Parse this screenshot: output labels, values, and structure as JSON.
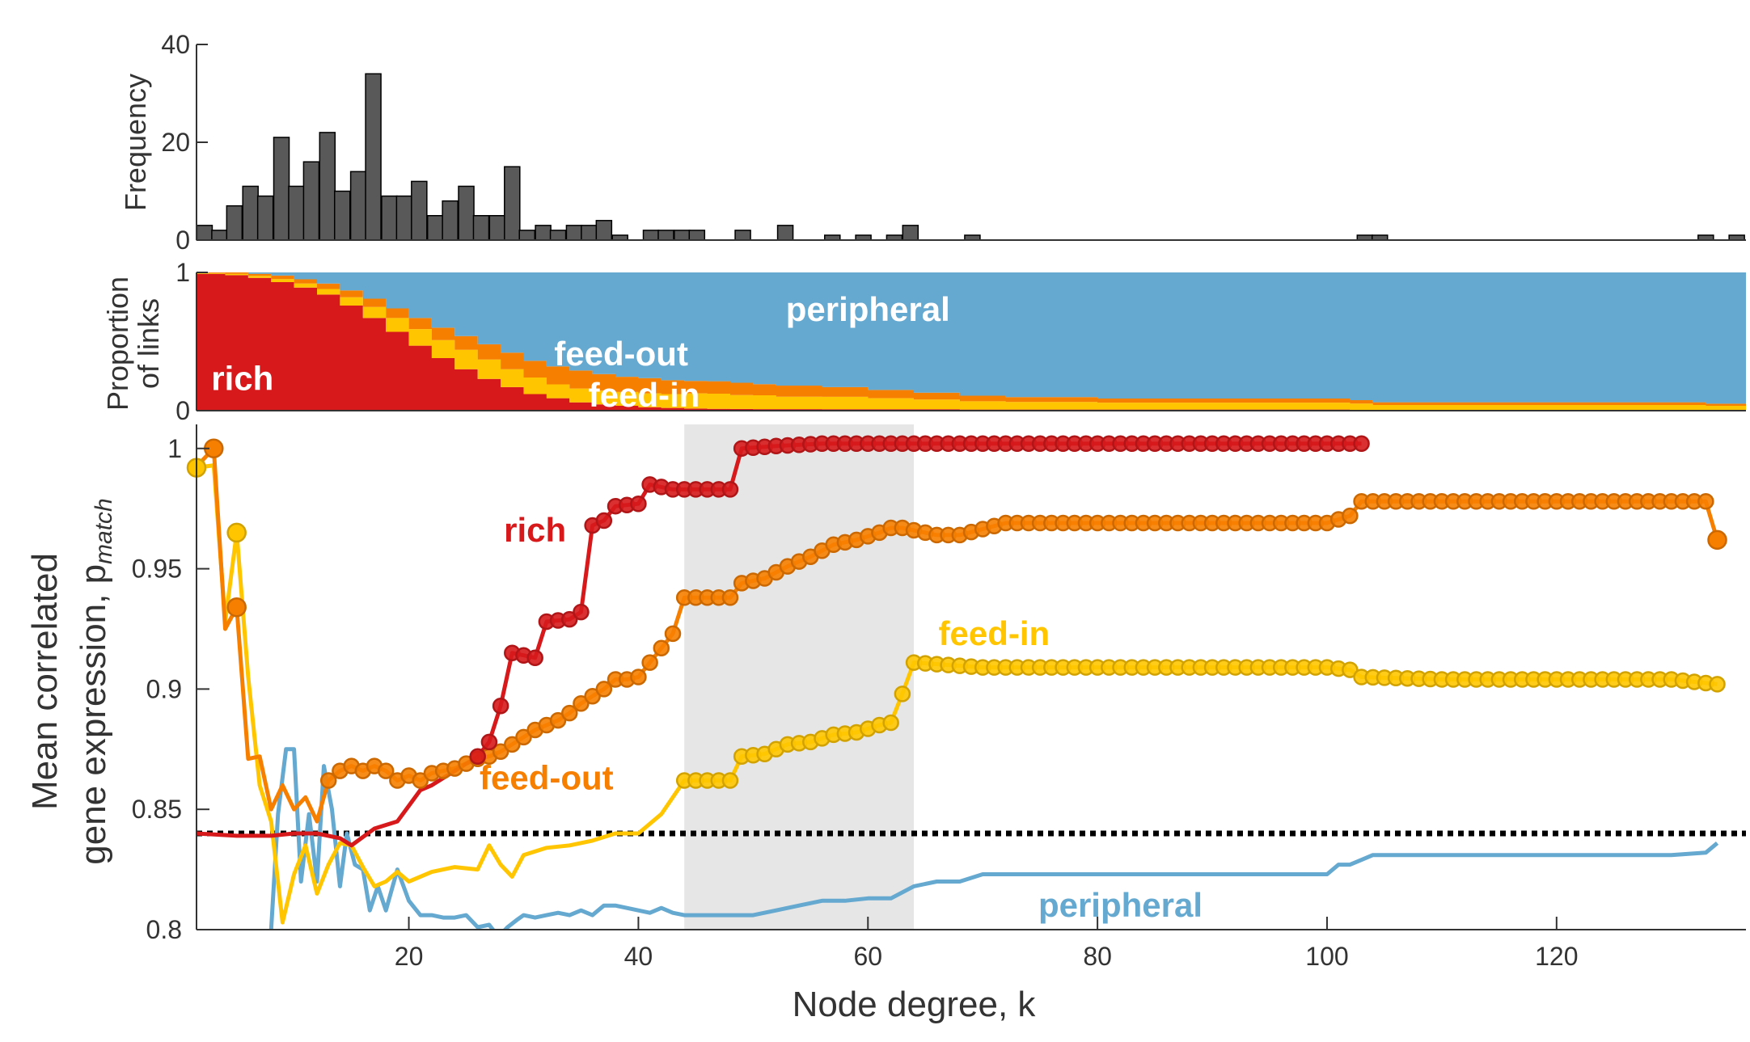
{
  "chart_data": [
    {
      "type": "bar",
      "name": "degree-histogram",
      "ylabel": "Frequency",
      "xlim": [
        1.5,
        136.5
      ],
      "ylim": [
        0,
        40
      ],
      "yticks": [
        0,
        20,
        40
      ],
      "ytick_labels": [
        "0",
        "20",
        "40"
      ],
      "bar_color": "#595959",
      "bin_width": 1.34,
      "x": [
        2.2,
        3.5,
        4.8,
        6.2,
        7.5,
        8.9,
        10.2,
        11.5,
        12.9,
        14.2,
        15.6,
        16.9,
        18.3,
        19.6,
        20.9,
        22.3,
        23.6,
        25.0,
        26.3,
        27.7,
        29.0,
        30.3,
        31.7,
        33.0,
        34.4,
        35.7,
        37.0,
        38.4,
        41.1,
        42.4,
        43.8,
        45.1,
        49.1,
        52.8,
        56.9,
        59.6,
        62.3,
        63.7,
        69.1,
        103.3,
        104.6,
        133.0,
        135.7
      ],
      "values": [
        3,
        2,
        7,
        11,
        9,
        21,
        11,
        16,
        22,
        10,
        14,
        34,
        9,
        9,
        12,
        5,
        8,
        11,
        5,
        5,
        15,
        2,
        3,
        2,
        3,
        3,
        4,
        1,
        2,
        2,
        2,
        2,
        2,
        3,
        1,
        1,
        1,
        3,
        1,
        1,
        1,
        1,
        1
      ]
    },
    {
      "type": "area",
      "name": "link-proportion",
      "ylabel": "Proportion of links",
      "ylim": [
        0,
        1
      ],
      "yticks": [
        0,
        1
      ],
      "ytick_labels": [
        "0",
        "1"
      ],
      "stack_order": [
        "rich",
        "feed-in",
        "feed-out",
        "peripheral"
      ],
      "k": [
        1.5,
        4,
        6,
        8,
        10,
        12,
        14,
        16,
        18,
        20,
        22,
        24,
        26,
        28,
        30,
        32,
        34,
        36,
        38,
        40,
        42,
        44,
        46,
        48,
        50,
        52,
        56,
        60,
        64,
        68,
        72,
        80,
        90,
        100,
        102,
        104,
        110,
        120,
        130,
        133,
        136.5
      ],
      "series": [
        {
          "name": "rich",
          "color": "#d7191c",
          "values": [
            0.99,
            0.98,
            0.96,
            0.93,
            0.89,
            0.84,
            0.76,
            0.67,
            0.57,
            0.47,
            0.38,
            0.3,
            0.23,
            0.17,
            0.12,
            0.09,
            0.06,
            0.045,
            0.035,
            0.025,
            0.02,
            0.015,
            0.013,
            0.012,
            0.011,
            0.011,
            0.01,
            0.01,
            0.01,
            0.008,
            0.008,
            0.008,
            0.008,
            0.008,
            0.006,
            0.006,
            0.006,
            0.006,
            0.006,
            0.005,
            0.005
          ]
        },
        {
          "name": "feed-in",
          "color": "#ffc600",
          "values": [
            0.005,
            0.01,
            0.015,
            0.022,
            0.03,
            0.04,
            0.06,
            0.08,
            0.1,
            0.12,
            0.13,
            0.14,
            0.14,
            0.13,
            0.12,
            0.1,
            0.1,
            0.1,
            0.1,
            0.1,
            0.1,
            0.11,
            0.11,
            0.1,
            0.1,
            0.09,
            0.09,
            0.08,
            0.07,
            0.06,
            0.055,
            0.05,
            0.05,
            0.05,
            0.045,
            0.035,
            0.035,
            0.035,
            0.035,
            0.03,
            0.0
          ]
        },
        {
          "name": "feed-out",
          "color": "#f77f00",
          "values": [
            0.005,
            0.01,
            0.015,
            0.025,
            0.03,
            0.04,
            0.05,
            0.06,
            0.07,
            0.08,
            0.09,
            0.1,
            0.11,
            0.12,
            0.12,
            0.13,
            0.13,
            0.12,
            0.11,
            0.11,
            0.1,
            0.09,
            0.09,
            0.09,
            0.08,
            0.08,
            0.07,
            0.06,
            0.05,
            0.04,
            0.035,
            0.03,
            0.03,
            0.03,
            0.025,
            0.02,
            0.02,
            0.02,
            0.02,
            0.015,
            0.0
          ]
        },
        {
          "name": "peripheral",
          "color": "#65a8d0",
          "values": [
            0.0,
            0.0,
            0.01,
            0.023,
            0.05,
            0.08,
            0.13,
            0.19,
            0.26,
            0.33,
            0.4,
            0.46,
            0.52,
            0.58,
            0.64,
            0.68,
            0.71,
            0.735,
            0.755,
            0.765,
            0.78,
            0.785,
            0.787,
            0.798,
            0.809,
            0.819,
            0.83,
            0.85,
            0.87,
            0.892,
            0.902,
            0.912,
            0.912,
            0.912,
            0.924,
            0.939,
            0.939,
            0.939,
            0.939,
            0.95,
            0.995
          ]
        }
      ],
      "annotations": [
        {
          "text": "peripheral",
          "k": 60,
          "y": 0.73,
          "color": "#ffffff"
        },
        {
          "text": "feed-out",
          "k": 38.5,
          "y": 0.41,
          "color": "#ffffff"
        },
        {
          "text": "rich",
          "k": 5.5,
          "y": 0.23,
          "color": "#ffffff"
        },
        {
          "text": "feed-in",
          "k": 40.5,
          "y": 0.11,
          "color": "#ffffff"
        }
      ]
    },
    {
      "type": "line",
      "name": "mean-correlated-gene-expression",
      "xlabel": "Node degree, k",
      "ylabel_main": "Mean correlated",
      "ylabel_second": "gene expression, p",
      "ylabel_subscript": "match",
      "xlim": [
        1.5,
        136.5
      ],
      "ylim": [
        0.8,
        1.01
      ],
      "xticks": [
        20,
        40,
        60,
        80,
        100,
        120
      ],
      "xtick_labels": [
        "20",
        "40",
        "60",
        "80",
        "100",
        "120"
      ],
      "yticks": [
        0.8,
        0.85,
        0.9,
        0.95,
        1.0
      ],
      "ytick_labels": [
        "0.8",
        "0.85",
        "0.9",
        "0.95",
        "1"
      ],
      "shaded_region": {
        "k_from": 44,
        "k_to": 64,
        "color": "#e6e6e6"
      },
      "reference_line": {
        "y": 0.84,
        "color": "#000000",
        "style": "dotted"
      },
      "series": [
        {
          "name": "rich",
          "color": "#d7191c",
          "marker_from_k": 26,
          "k": [
            1.5,
            5,
            8,
            10,
            12,
            14,
            15,
            17,
            19,
            21,
            22,
            24,
            26,
            27,
            28,
            29,
            30,
            31,
            32,
            34,
            35,
            36,
            37,
            38,
            40,
            41,
            43,
            45,
            48,
            49,
            52,
            56,
            60,
            64,
            70,
            80,
            90,
            100,
            103
          ],
          "values": [
            0.84,
            0.839,
            0.839,
            0.84,
            0.84,
            0.838,
            0.835,
            0.842,
            0.845,
            0.858,
            0.86,
            0.866,
            0.872,
            0.878,
            0.893,
            0.915,
            0.914,
            0.913,
            0.928,
            0.929,
            0.932,
            0.968,
            0.97,
            0.976,
            0.977,
            0.985,
            0.983,
            0.983,
            0.983,
            1.0,
            1.001,
            1.002,
            1.002,
            1.002,
            1.002,
            1.002,
            1.002,
            1.002,
            1.002
          ]
        },
        {
          "name": "feed-out",
          "color": "#f77f00",
          "marker_from_k": 13,
          "k": [
            2,
            3,
            4,
            5,
            6,
            7,
            8,
            9,
            10,
            11,
            12,
            13,
            14,
            15,
            16,
            17,
            18,
            19,
            20,
            21,
            22,
            23,
            24,
            25,
            26,
            27,
            28,
            29,
            30,
            31,
            32,
            33,
            34,
            35,
            36,
            37,
            38,
            39,
            40,
            41,
            42,
            43,
            44,
            46,
            48,
            49,
            51,
            53,
            55,
            57,
            59,
            61,
            62,
            63,
            66,
            68,
            72,
            80,
            90,
            100,
            102,
            103,
            110,
            120,
            130,
            133,
            134
          ],
          "values": [
            0.995,
            1.0,
            0.925,
            0.934,
            0.871,
            0.872,
            0.85,
            0.86,
            0.85,
            0.855,
            0.845,
            0.862,
            0.866,
            0.868,
            0.866,
            0.868,
            0.866,
            0.862,
            0.864,
            0.862,
            0.865,
            0.866,
            0.867,
            0.869,
            0.871,
            0.872,
            0.874,
            0.877,
            0.88,
            0.883,
            0.885,
            0.887,
            0.89,
            0.894,
            0.897,
            0.9,
            0.904,
            0.904,
            0.905,
            0.911,
            0.917,
            0.923,
            0.938,
            0.938,
            0.938,
            0.944,
            0.946,
            0.951,
            0.955,
            0.96,
            0.962,
            0.965,
            0.967,
            0.967,
            0.964,
            0.964,
            0.969,
            0.969,
            0.969,
            0.969,
            0.972,
            0.978,
            0.978,
            0.978,
            0.978,
            0.978,
            0.962
          ]
        },
        {
          "name": "feed-in",
          "color": "#ffc600",
          "marker_from_k": 44,
          "k": [
            1.5,
            3,
            4,
            5,
            6,
            7,
            8,
            9,
            10,
            11,
            12,
            13,
            14,
            15,
            16,
            17,
            18,
            19,
            20,
            22,
            24,
            26,
            27,
            28,
            29,
            30,
            32,
            34,
            36,
            38,
            40,
            42,
            44,
            46,
            48,
            49,
            51,
            53,
            55,
            57,
            59,
            61,
            62,
            63,
            64,
            70,
            80,
            90,
            100,
            102,
            103,
            110,
            120,
            130,
            134
          ],
          "values": [
            0.992,
            0.993,
            0.928,
            0.965,
            0.905,
            0.86,
            0.845,
            0.803,
            0.823,
            0.835,
            0.815,
            0.827,
            0.836,
            0.835,
            0.826,
            0.818,
            0.82,
            0.824,
            0.82,
            0.824,
            0.826,
            0.825,
            0.835,
            0.827,
            0.822,
            0.831,
            0.834,
            0.835,
            0.837,
            0.84,
            0.84,
            0.848,
            0.862,
            0.862,
            0.862,
            0.872,
            0.873,
            0.877,
            0.878,
            0.881,
            0.882,
            0.885,
            0.886,
            0.898,
            0.911,
            0.909,
            0.909,
            0.909,
            0.909,
            0.908,
            0.905,
            0.904,
            0.904,
            0.904,
            0.902
          ]
        },
        {
          "name": "peripheral",
          "color": "#65a8d0",
          "marker_from_k": null,
          "k": [
            8,
            8.6,
            9.3,
            10,
            10.6,
            11.3,
            12,
            12.6,
            13.3,
            14,
            14.6,
            15.3,
            16,
            16.6,
            17.3,
            18,
            19,
            20,
            21,
            22,
            23,
            24,
            25,
            26,
            27,
            27.8,
            28.6,
            29.4,
            30,
            31,
            32,
            33,
            34,
            35,
            36,
            37,
            38,
            39,
            40,
            41,
            42,
            43,
            44,
            46,
            48,
            50,
            52,
            54,
            56,
            58,
            60,
            62,
            64,
            66,
            68,
            70,
            80,
            90,
            100,
            101,
            102,
            103,
            104,
            110,
            120,
            130,
            133,
            134
          ],
          "values": [
            0.8,
            0.848,
            0.875,
            0.875,
            0.82,
            0.848,
            0.82,
            0.868,
            0.85,
            0.818,
            0.84,
            0.827,
            0.825,
            0.808,
            0.818,
            0.808,
            0.825,
            0.812,
            0.806,
            0.806,
            0.805,
            0.805,
            0.806,
            0.801,
            0.802,
            0.797,
            0.801,
            0.804,
            0.806,
            0.805,
            0.806,
            0.807,
            0.806,
            0.808,
            0.806,
            0.81,
            0.81,
            0.809,
            0.808,
            0.807,
            0.809,
            0.807,
            0.806,
            0.806,
            0.806,
            0.806,
            0.808,
            0.81,
            0.812,
            0.812,
            0.813,
            0.813,
            0.818,
            0.82,
            0.82,
            0.823,
            0.823,
            0.823,
            0.823,
            0.827,
            0.827,
            0.829,
            0.831,
            0.831,
            0.831,
            0.831,
            0.832,
            0.836
          ]
        }
      ],
      "annotations": [
        {
          "text": "rich",
          "k": 31,
          "y": 0.966,
          "color": "#d7191c"
        },
        {
          "text": "feed-out",
          "k": 32,
          "y": 0.863,
          "color": "#f77f00"
        },
        {
          "text": "feed-in",
          "k": 71,
          "y": 0.923,
          "color": "#ffc600"
        },
        {
          "text": "peripheral",
          "k": 82,
          "y": 0.81,
          "color": "#65a8d0"
        }
      ]
    }
  ]
}
